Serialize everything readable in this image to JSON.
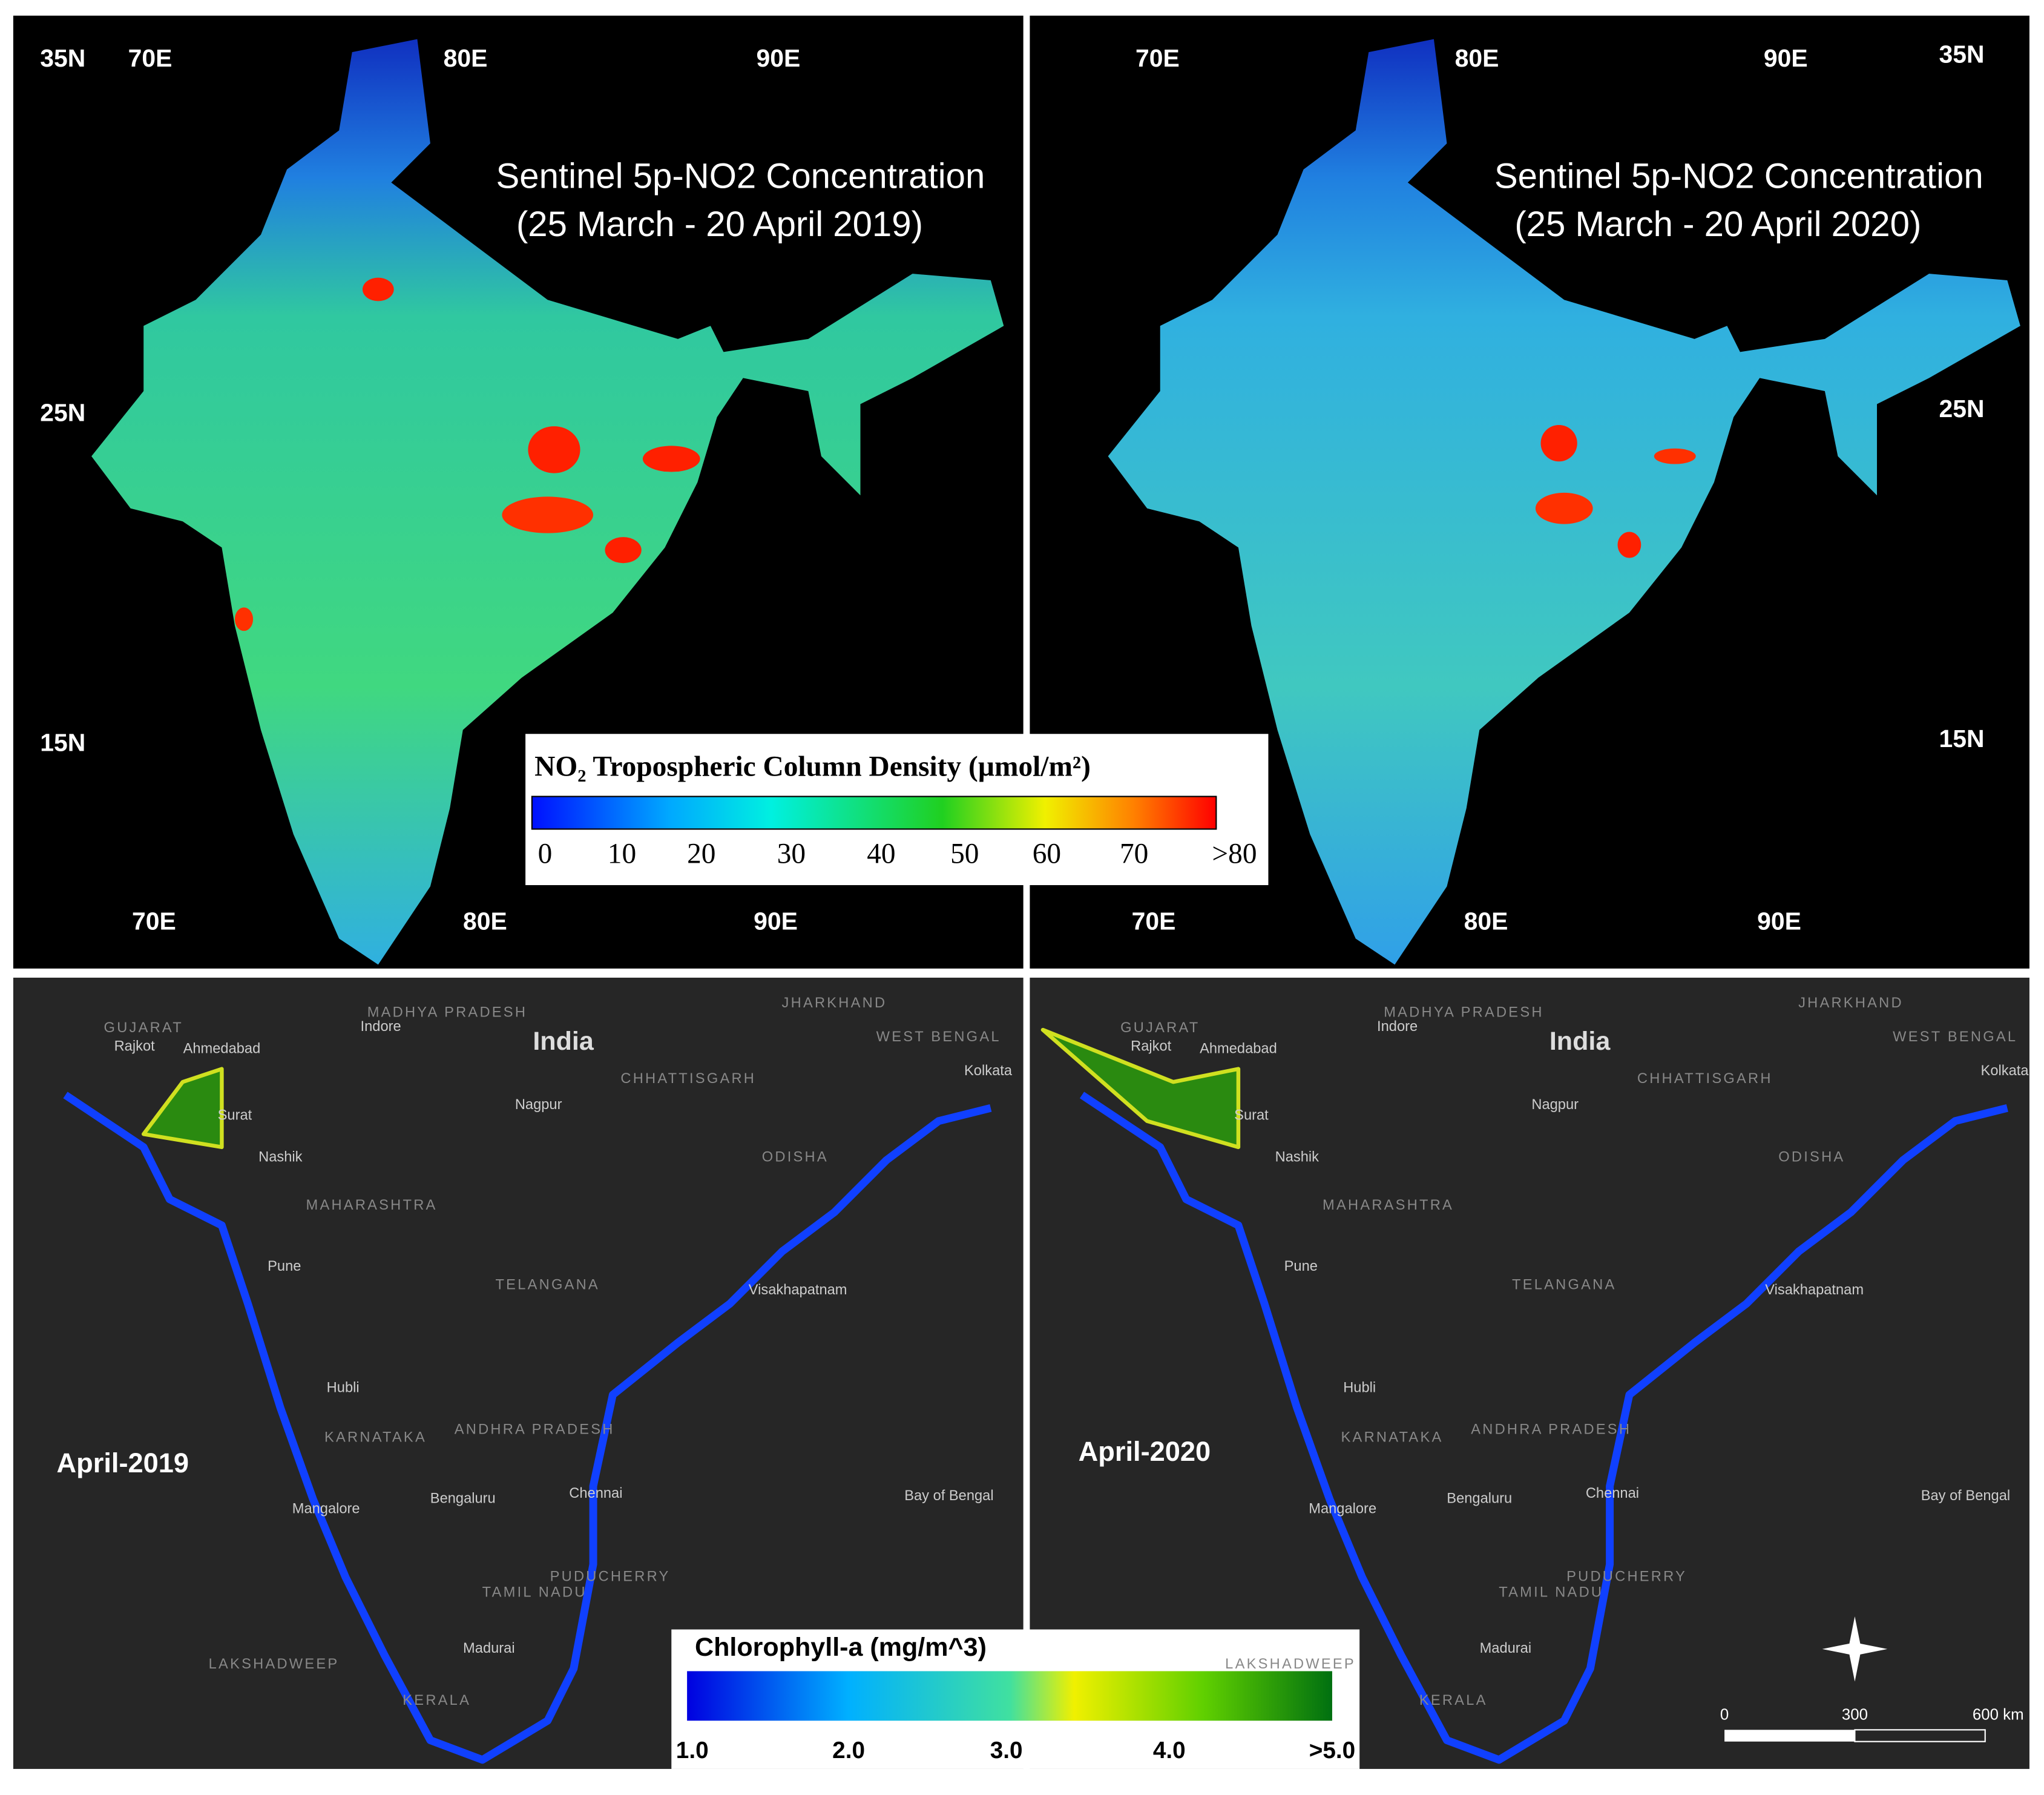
{
  "no2_panels": [
    {
      "title": "Sentinel 5p-NO2 Concentration",
      "period": "(25 March - 20 April 2019)",
      "top_lon": [
        "70E",
        "80E",
        "90E"
      ],
      "bottom_lon": [
        "70E",
        "80E",
        "90E"
      ],
      "lat": [
        "35N",
        "25N",
        "15N"
      ]
    },
    {
      "title": "Sentinel 5p-NO2 Concentration",
      "period": "(25 March - 20 April 2020)",
      "top_lon": [
        "70E",
        "80E",
        "90E"
      ],
      "bottom_lon": [
        "70E",
        "80E",
        "90E"
      ],
      "lat": [
        "35N",
        "25N",
        "15N"
      ]
    }
  ],
  "no2_legend": {
    "title": "NO₂ Tropospheric Column Density (µmol/m²)",
    "labels": [
      "0",
      "10",
      "20",
      "30",
      "40",
      "50",
      "60",
      "70",
      ">80"
    ]
  },
  "chl_panels": [
    {
      "label": "April-2019"
    },
    {
      "label": "April-2020"
    }
  ],
  "basemap_labels": [
    "Rajkot",
    "Ahmedabad",
    "Indore",
    "MADHYA PRADESH",
    "India",
    "JHARKHAND",
    "WEST BENGAL",
    "Kolkata",
    "CHHATTISGARH",
    "Nagpur",
    "Surat",
    "Nashik",
    "MAHARASHTRA",
    "ODISHA",
    "Pune",
    "TELANGANA",
    "Visakhapatnam",
    "Hubli",
    "KARNATAKA",
    "ANDHRA PRADESH",
    "Chennai",
    "Bengaluru",
    "Mangalore",
    "TAMIL NADU",
    "PUDUCHERRY",
    "Madurai",
    "LAKSHADWEEP",
    "KERALA",
    "Bay of Bengal",
    "GUJARAT"
  ],
  "chl_legend": {
    "title": "Chlorophyll-a (mg/m^3)",
    "labels": [
      "1.0",
      "2.0",
      "3.0",
      "4.0",
      ">5.0"
    ]
  },
  "scale_bar": {
    "labels": [
      "0",
      "300",
      "600 km"
    ]
  }
}
